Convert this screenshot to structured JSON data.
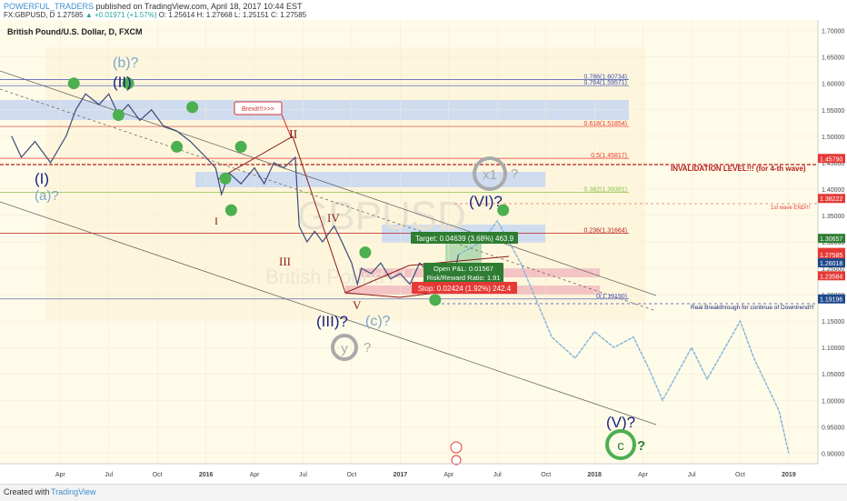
{
  "header": {
    "user": "POWERFUL_TRADERS",
    "published": "published on TradingView.com, April 18, 2017 10:44 EST",
    "symbol": "FX:GBPUSD, D",
    "last": "1.27585",
    "change": "▲ +0.01971 (+1.57%)",
    "open": "O: 1.25614",
    "high": "H: 1.27668",
    "low": "L: 1.25151",
    "close": "C: 1.27585"
  },
  "chart_title": "British Pound/U.S. Dollar, D, FXCM",
  "watermark": "GBPUSD",
  "watermark_sub": "British Pound / U.S. Dollar",
  "colors": {
    "wave_blue": "#1a237e",
    "wave_light": "#7ba7c9",
    "wave_brown": "#8b1a1a",
    "green_dot": "#4caf50",
    "projection": "#7fb3d8",
    "invalidation": "#b71c1c"
  },
  "footer": {
    "created": "Created with",
    "brand": "TradingView"
  },
  "fib_levels": [
    {
      "label": "0.786(1.60734)",
      "y": 1.6073
    },
    {
      "label": "0.764(1.59571)",
      "y": 1.5957
    },
    {
      "label": "0.618(1.51854)",
      "y": 1.5185
    },
    {
      "label": "0.5(1.45817)",
      "y": 1.4582
    },
    {
      "label": "0.382(1.39381)",
      "y": 1.3938
    },
    {
      "label": "0.236(1.31664)",
      "y": 1.3166
    },
    {
      "label": "0(1.19190)",
      "y": 1.1919
    }
  ],
  "annotations": {
    "brexit": "Brexit!!!>>>",
    "invalidation": "INVALIDATION LEVEL!!! (for 4-th wave)",
    "first_wave": "1st wave END!!!",
    "breakthrough": "Real Breakthrough for continue of Downtrend!!!",
    "target": "Target: 0.04639 (3.68%) 463.9",
    "open_pl": "Open P&L: 0.01567",
    "risk_reward": "Risk/Reward Ratio: 1.91",
    "stop": "Stop: 0.02424 (1.92%) 242.4"
  },
  "wave_labels": {
    "b": "(b)?",
    "II_big": "(II)",
    "I_big": "(I)",
    "a": "(a)?",
    "II": "II",
    "I": "I",
    "IV": "IV",
    "III": "III",
    "V": "V",
    "III_big": "(III)?",
    "c": "(c)?",
    "y": "y",
    "y_q": "?",
    "x1": "x1",
    "x1_q": "?",
    "VI": "(VI)?",
    "V_big": "(V)?",
    "C": "c",
    "C_q": "?",
    "q": "?"
  },
  "price_tags": [
    {
      "label": "1.45790",
      "y": 1.4579,
      "color": "#e53935"
    },
    {
      "label": "1.38222",
      "y": 1.3822,
      "color": "#e53935"
    },
    {
      "label": "1.30657",
      "y": 1.3066,
      "color": "#2e7d32"
    },
    {
      "label": "GBPUSD",
      "y": 1.28,
      "color": "#e53935"
    },
    {
      "label": "1.27585",
      "y": 1.2758,
      "color": "#e53935"
    },
    {
      "label": "1.26018",
      "y": 1.2602,
      "color": "#1e4a8c"
    },
    {
      "label": "1.23584",
      "y": 1.2358,
      "color": "#e53935"
    },
    {
      "label": "1.19196",
      "y": 1.192,
      "color": "#1e4a8c"
    }
  ],
  "chart_data": {
    "type": "line",
    "title": "British Pound/U.S. Dollar, D, FXCM",
    "x_ticks": [
      "Apr",
      "Jul",
      "Oct",
      "2016",
      "Apr",
      "Jul",
      "Oct",
      "2017",
      "Apr",
      "Jul",
      "Oct",
      "2018",
      "Apr",
      "Jul",
      "Oct",
      "2019"
    ],
    "y_ticks": [
      "1.70000",
      "1.65000",
      "1.60000",
      "1.55000",
      "1.50000",
      "1.45000",
      "1.40000",
      "1.35000",
      "1.30000",
      "1.25000",
      "1.20000",
      "1.15000",
      "1.10000",
      "1.05000",
      "1.00000",
      "0.95000",
      "0.90000"
    ],
    "ylim": [
      0.88,
      1.72
    ],
    "series": [
      {
        "values": [
          [
            2015.0,
            1.5
          ],
          [
            2015.05,
            1.46
          ],
          [
            2015.12,
            1.49
          ],
          [
            2015.2,
            1.45
          ],
          [
            2015.28,
            1.5
          ],
          [
            2015.33,
            1.55
          ],
          [
            2015.38,
            1.58
          ],
          [
            2015.45,
            1.56
          ],
          [
            2015.5,
            1.58
          ],
          [
            2015.55,
            1.54
          ],
          [
            2015.6,
            1.56
          ],
          [
            2015.66,
            1.53
          ],
          [
            2015.72,
            1.55
          ],
          [
            2015.78,
            1.52
          ],
          [
            2015.85,
            1.51
          ],
          [
            2015.92,
            1.49
          ],
          [
            2016.0,
            1.46
          ],
          [
            2016.05,
            1.44
          ],
          [
            2016.08,
            1.39
          ],
          [
            2016.12,
            1.43
          ],
          [
            2016.18,
            1.41
          ],
          [
            2016.25,
            1.44
          ],
          [
            2016.3,
            1.41
          ],
          [
            2016.35,
            1.45
          ],
          [
            2016.4,
            1.44
          ],
          [
            2016.46,
            1.46
          ],
          [
            2016.48,
            1.33
          ],
          [
            2016.52,
            1.3
          ],
          [
            2016.56,
            1.32
          ],
          [
            2016.6,
            1.3
          ],
          [
            2016.66,
            1.33
          ],
          [
            2016.7,
            1.3
          ],
          [
            2016.75,
            1.26
          ],
          [
            2016.78,
            1.22
          ],
          [
            2016.8,
            1.25
          ],
          [
            2016.85,
            1.24
          ],
          [
            2016.9,
            1.26
          ],
          [
            2016.95,
            1.23
          ],
          [
            2017.0,
            1.24
          ],
          [
            2017.05,
            1.22
          ],
          [
            2017.1,
            1.26
          ],
          [
            2017.15,
            1.24
          ],
          [
            2017.2,
            1.25
          ],
          [
            2017.25,
            1.24
          ],
          [
            2017.29,
            1.26
          ],
          [
            2017.3,
            1.276
          ]
        ]
      },
      {
        "values": [
          [
            2017.3,
            1.276
          ],
          [
            2017.42,
            1.3
          ],
          [
            2017.5,
            1.34
          ],
          [
            2017.62,
            1.26
          ],
          [
            2017.78,
            1.12
          ],
          [
            2017.9,
            1.08
          ],
          [
            2018.0,
            1.13
          ],
          [
            2018.1,
            1.1
          ],
          [
            2018.2,
            1.12
          ],
          [
            2018.28,
            1.06
          ],
          [
            2018.35,
            1.0
          ],
          [
            2018.5,
            1.1
          ],
          [
            2018.58,
            1.04
          ],
          [
            2018.75,
            1.15
          ],
          [
            2018.82,
            1.08
          ],
          [
            2018.95,
            0.98
          ],
          [
            2019.0,
            0.9
          ]
        ]
      }
    ]
  }
}
